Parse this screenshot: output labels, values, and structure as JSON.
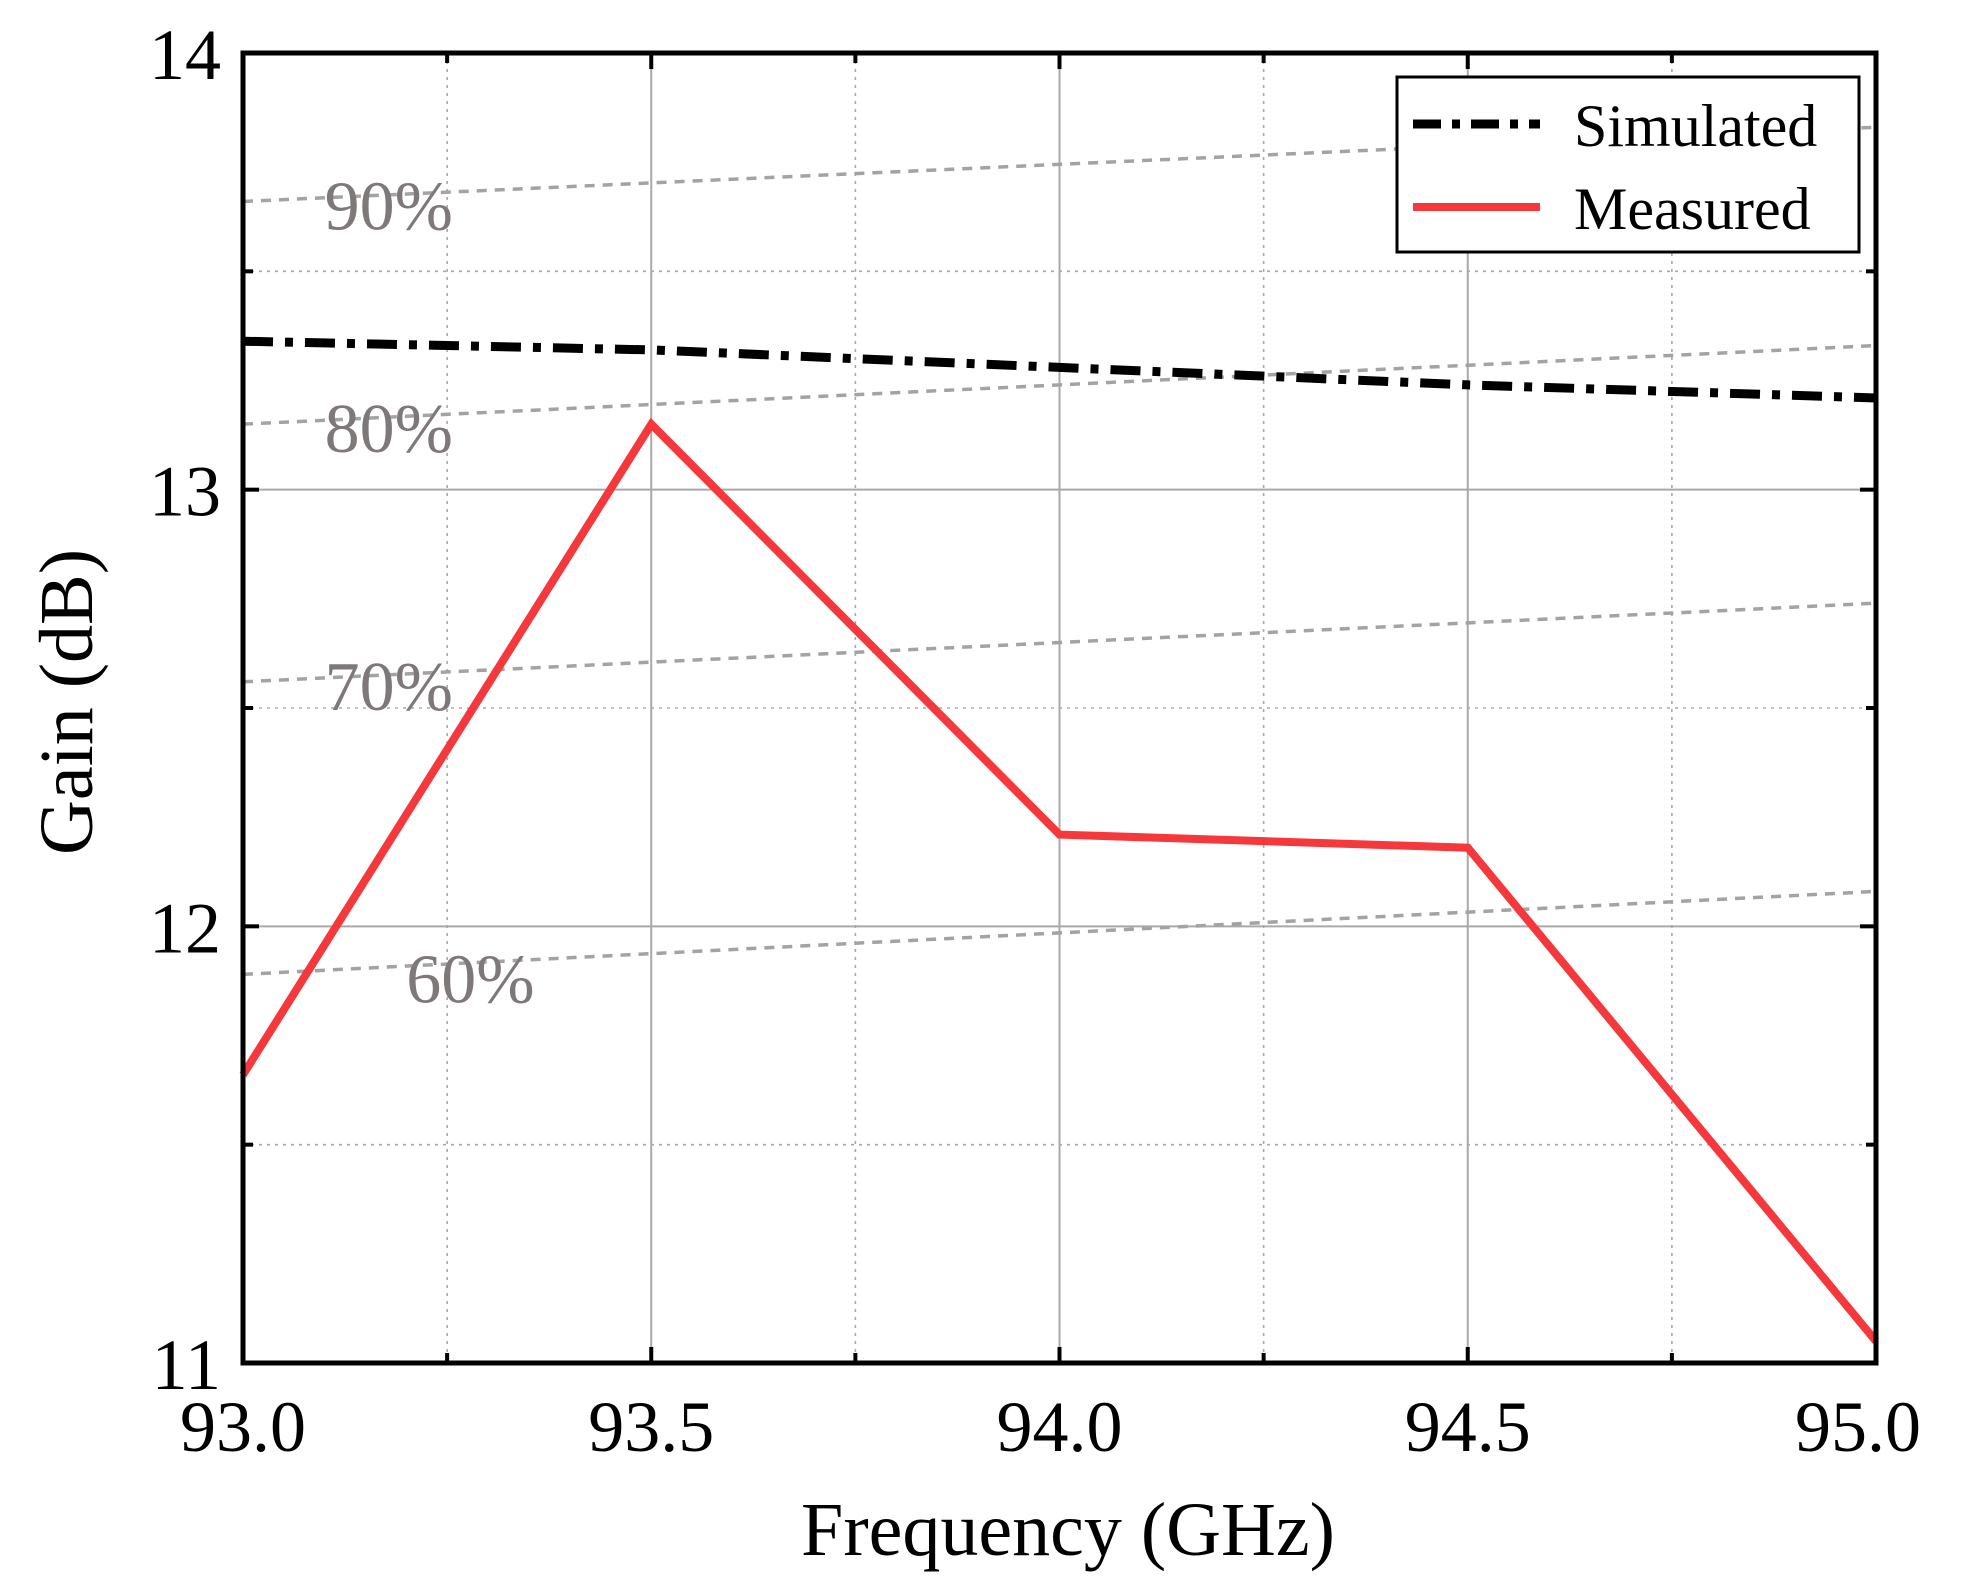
{
  "chart_data": {
    "type": "line",
    "title": "",
    "xlabel": "Frequency (GHz)",
    "ylabel": "Gain (dB)",
    "xlim": [
      93.0,
      95.0
    ],
    "ylim": [
      11,
      14
    ],
    "x_ticks": [
      93.0,
      93.5,
      94.0,
      94.5,
      95.0
    ],
    "x_tick_labels": [
      "93.0",
      "93.5",
      "94.0",
      "94.5",
      "95.0"
    ],
    "y_ticks": [
      11,
      12,
      13,
      14
    ],
    "y_tick_labels": [
      "11",
      "12",
      "13",
      "14"
    ],
    "x_minor_ticks": [
      93.25,
      93.75,
      94.25,
      94.75
    ],
    "y_minor_ticks": [
      11.5,
      12.5,
      13.5
    ],
    "grid": true,
    "legend_position": "top-right",
    "series": [
      {
        "name": "Simulated",
        "color": "#000000",
        "line_style": "dash-dot",
        "x": [
          93.0,
          93.5,
          94.0,
          94.5,
          95.0
        ],
        "y": [
          13.34,
          13.32,
          13.28,
          13.24,
          13.21
        ]
      },
      {
        "name": "Measured",
        "color": "#f5383b",
        "line_style": "solid",
        "x": [
          93.0,
          93.5,
          94.0,
          94.5,
          95.0
        ],
        "y": [
          11.66,
          13.15,
          12.21,
          12.18,
          11.05
        ]
      }
    ],
    "efficiency_contours": [
      {
        "label": "90%",
        "y_start": 13.66,
        "y_end": 13.83,
        "label_x": 93.1,
        "label_y": 13.66
      },
      {
        "label": "80%",
        "y_start": 13.15,
        "y_end": 13.33,
        "label_x": 93.1,
        "label_y": 13.15
      },
      {
        "label": "70%",
        "y_start": 12.56,
        "y_end": 12.74,
        "label_x": 93.1,
        "label_y": 12.56
      },
      {
        "label": "60%",
        "y_start": 11.89,
        "y_end": 12.08,
        "label_x": 93.2,
        "label_y": 11.89
      }
    ],
    "colors": {
      "contour": "#a3a3a3",
      "contour_label": "#7f7878",
      "grid": "#a9a9a9",
      "axis": "#000000"
    }
  }
}
